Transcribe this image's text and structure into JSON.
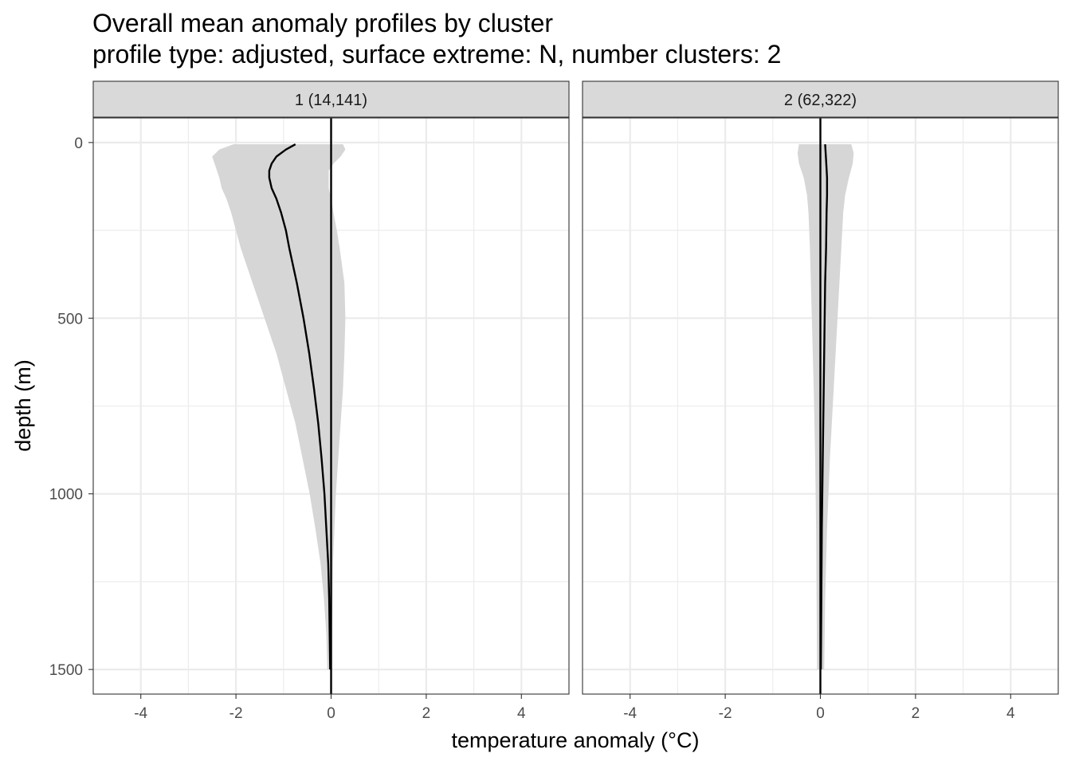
{
  "chart_data": {
    "type": "line",
    "title": "Overall mean anomaly profiles by cluster",
    "subtitle": "profile type: adjusted, surface extreme: N, number clusters: 2",
    "xlabel": "temperature anomaly (°C)",
    "ylabel": "depth (m)",
    "xlim": [
      -5,
      5
    ],
    "ylim": [
      1570,
      -70
    ],
    "y_reversed": true,
    "x_ticks": [
      -4,
      -2,
      0,
      2,
      4
    ],
    "x_tick_labels": [
      "-4",
      "-2",
      "0",
      "2",
      "4"
    ],
    "y_ticks": [
      0,
      500,
      1000,
      1500
    ],
    "y_tick_labels": [
      "0",
      "500",
      "1000",
      "1500"
    ],
    "vline_x": 0,
    "colors": {
      "mean_line": "#000000",
      "ribbon": "#d6d6d6",
      "strip": "#d9d9d9",
      "grid": "#ebebeb"
    },
    "panels": [
      {
        "label": "1 (14,141)",
        "mean": {
          "depth": [
            5,
            20,
            40,
            60,
            80,
            100,
            130,
            160,
            200,
            250,
            300,
            400,
            500,
            600,
            700,
            800,
            900,
            1000,
            1100,
            1200,
            1300,
            1400,
            1500
          ],
          "value": [
            -0.75,
            -0.95,
            -1.15,
            -1.25,
            -1.3,
            -1.3,
            -1.25,
            -1.15,
            -1.05,
            -0.95,
            -0.88,
            -0.72,
            -0.58,
            -0.46,
            -0.36,
            -0.27,
            -0.2,
            -0.14,
            -0.1,
            -0.06,
            -0.04,
            -0.03,
            -0.02
          ]
        },
        "ribbon": {
          "depth": [
            5,
            20,
            40,
            60,
            80,
            100,
            130,
            160,
            200,
            250,
            300,
            400,
            500,
            600,
            700,
            800,
            900,
            1000,
            1100,
            1200,
            1300,
            1400,
            1500
          ],
          "lower": [
            -2.05,
            -2.35,
            -2.5,
            -2.45,
            -2.4,
            -2.35,
            -2.3,
            -2.2,
            -2.1,
            -2.0,
            -1.9,
            -1.65,
            -1.4,
            -1.15,
            -0.95,
            -0.75,
            -0.6,
            -0.45,
            -0.33,
            -0.22,
            -0.15,
            -0.1,
            -0.08
          ],
          "upper": [
            0.25,
            0.3,
            0.2,
            0.05,
            -0.05,
            -0.05,
            -0.05,
            0.0,
            0.05,
            0.12,
            0.18,
            0.28,
            0.3,
            0.28,
            0.25,
            0.2,
            0.15,
            0.1,
            0.07,
            0.04,
            0.03,
            0.02,
            0.02
          ]
        }
      },
      {
        "label": "2 (62,322)",
        "mean": {
          "depth": [
            5,
            50,
            100,
            150,
            200,
            300,
            400,
            500,
            700,
            900,
            1100,
            1300,
            1500
          ],
          "value": [
            0.1,
            0.12,
            0.14,
            0.14,
            0.13,
            0.12,
            0.1,
            0.09,
            0.07,
            0.05,
            0.03,
            0.02,
            0.01
          ]
        },
        "ribbon": {
          "depth": [
            5,
            30,
            60,
            100,
            150,
            200,
            300,
            400,
            500,
            700,
            900,
            1100,
            1300,
            1500
          ],
          "lower": [
            -0.45,
            -0.48,
            -0.45,
            -0.35,
            -0.28,
            -0.25,
            -0.22,
            -0.2,
            -0.18,
            -0.14,
            -0.11,
            -0.09,
            -0.08,
            -0.07
          ],
          "upper": [
            0.65,
            0.7,
            0.68,
            0.6,
            0.52,
            0.48,
            0.44,
            0.4,
            0.36,
            0.28,
            0.2,
            0.14,
            0.1,
            0.08
          ]
        }
      }
    ]
  }
}
